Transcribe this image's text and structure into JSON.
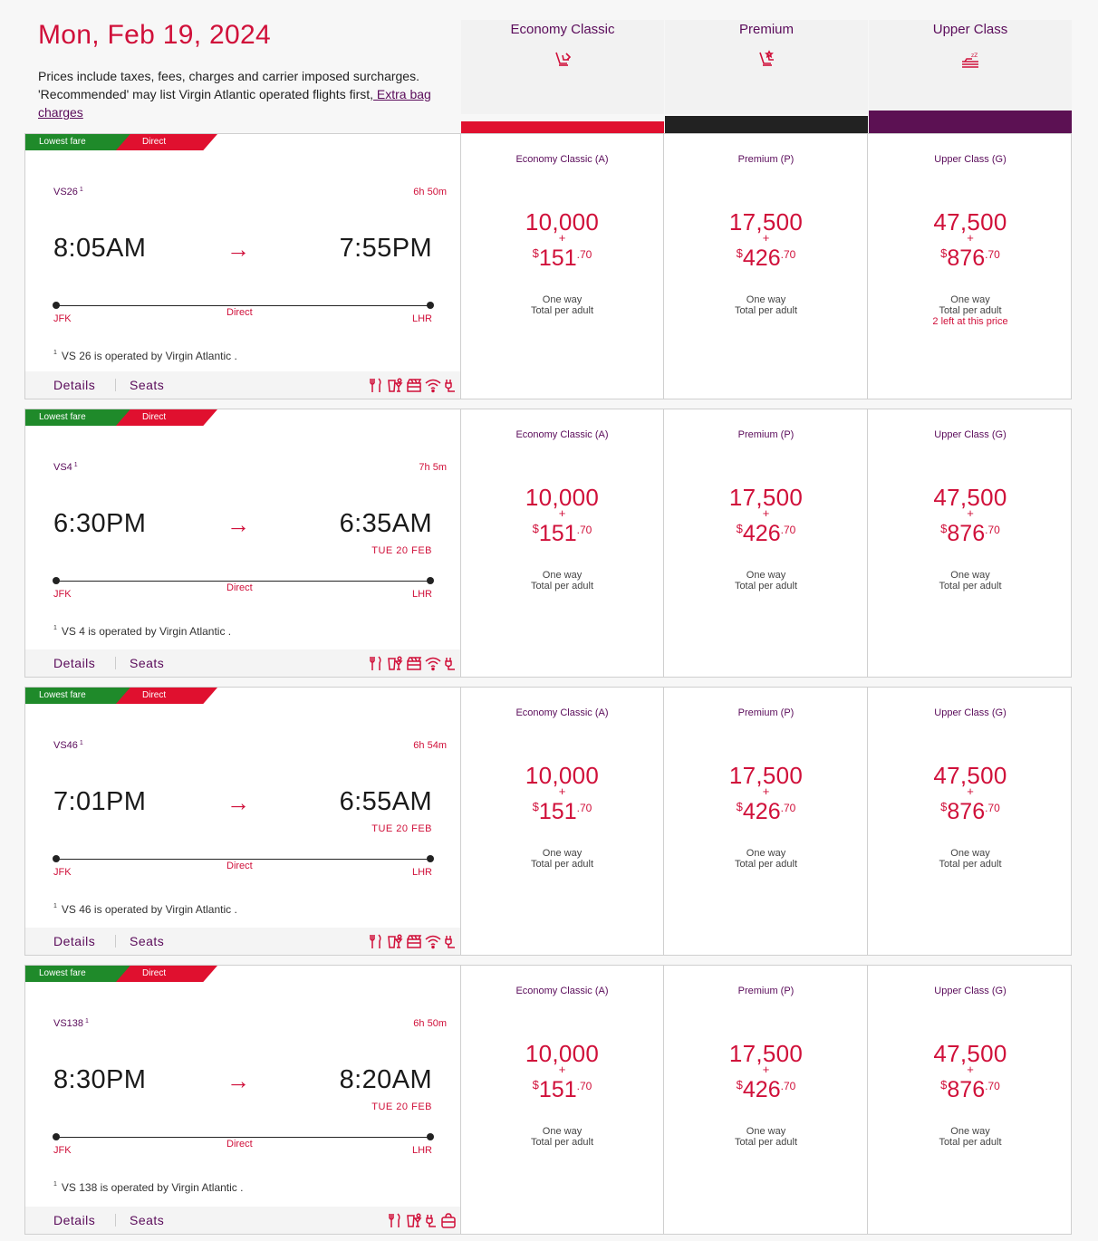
{
  "header": {
    "date": "Mon, Feb 19, 2024",
    "note": "Prices include taxes, fees, charges and carrier imposed surcharges. 'Recommended' may list Virgin Atlantic operated flights first,",
    "bag_link": " Extra bag charges"
  },
  "cabins": [
    {
      "label": "Economy Classic",
      "icon": "economy-seat-icon",
      "color": "#e0102f"
    },
    {
      "label": "Premium",
      "icon": "premium-seat-icon",
      "color": "#222222"
    },
    {
      "label": "Upper Class",
      "icon": "flat-bed-icon",
      "color": "#5c1153"
    }
  ],
  "tags": {
    "lowest": "Lowest fare",
    "direct": "Direct"
  },
  "labels": {
    "details": "Details",
    "seats": "Seats",
    "direct": "Direct",
    "plus": "+",
    "currency": "$",
    "one_way": "One way",
    "total": "Total per adult"
  },
  "flights": [
    {
      "number": "VS26",
      "sup": "1",
      "duration": "6h 50m",
      "depart": "8:05AM",
      "arrive": "7:55PM",
      "next_day": "",
      "from": "JFK",
      "to": "LHR",
      "operated": "VS 26 is operated by Virgin Atlantic .",
      "amenities": [
        "meal-icon",
        "drinks-icon",
        "entertainment-icon",
        "wifi-icon",
        "power-icon"
      ],
      "fares": [
        {
          "name": "Economy Classic (A)",
          "points": "10,000",
          "cash": "151",
          "cents": ".70",
          "note": ""
        },
        {
          "name": "Premium (P)",
          "points": "17,500",
          "cash": "426",
          "cents": ".70",
          "note": ""
        },
        {
          "name": "Upper Class (G)",
          "points": "47,500",
          "cash": "876",
          "cents": ".70",
          "note": "2 left at this price"
        }
      ]
    },
    {
      "number": "VS4",
      "sup": "1",
      "duration": "7h 5m",
      "depart": "6:30PM",
      "arrive": "6:35AM",
      "next_day": "TUE 20 FEB",
      "from": "JFK",
      "to": "LHR",
      "operated": "VS 4 is operated by Virgin Atlantic .",
      "amenities": [
        "meal-icon",
        "drinks-icon",
        "entertainment-icon",
        "wifi-icon",
        "power-icon"
      ],
      "fares": [
        {
          "name": "Economy Classic (A)",
          "points": "10,000",
          "cash": "151",
          "cents": ".70",
          "note": ""
        },
        {
          "name": "Premium (P)",
          "points": "17,500",
          "cash": "426",
          "cents": ".70",
          "note": ""
        },
        {
          "name": "Upper Class (G)",
          "points": "47,500",
          "cash": "876",
          "cents": ".70",
          "note": ""
        }
      ]
    },
    {
      "number": "VS46",
      "sup": "1",
      "duration": "6h 54m",
      "depart": "7:01PM",
      "arrive": "6:55AM",
      "next_day": "TUE 20 FEB",
      "from": "JFK",
      "to": "LHR",
      "operated": "VS 46 is operated by Virgin Atlantic .",
      "amenities": [
        "meal-icon",
        "drinks-icon",
        "entertainment-icon",
        "wifi-icon",
        "power-icon"
      ],
      "fares": [
        {
          "name": "Economy Classic (A)",
          "points": "10,000",
          "cash": "151",
          "cents": ".70",
          "note": ""
        },
        {
          "name": "Premium (P)",
          "points": "17,500",
          "cash": "426",
          "cents": ".70",
          "note": ""
        },
        {
          "name": "Upper Class (G)",
          "points": "47,500",
          "cash": "876",
          "cents": ".70",
          "note": ""
        }
      ]
    },
    {
      "number": "VS138",
      "sup": "1",
      "duration": "6h 50m",
      "depart": "8:30PM",
      "arrive": "8:20AM",
      "next_day": "TUE 20 FEB",
      "from": "JFK",
      "to": "LHR",
      "operated": "VS 138 is operated by Virgin Atlantic .",
      "amenities": [
        "meal-icon",
        "drinks-icon",
        "power-icon",
        "bag-icon"
      ],
      "fares": [
        {
          "name": "Economy Classic (A)",
          "points": "10,000",
          "cash": "151",
          "cents": ".70",
          "note": ""
        },
        {
          "name": "Premium (P)",
          "points": "17,500",
          "cash": "426",
          "cents": ".70",
          "note": ""
        },
        {
          "name": "Upper Class (G)",
          "points": "47,500",
          "cash": "876",
          "cents": ".70",
          "note": ""
        }
      ]
    }
  ]
}
